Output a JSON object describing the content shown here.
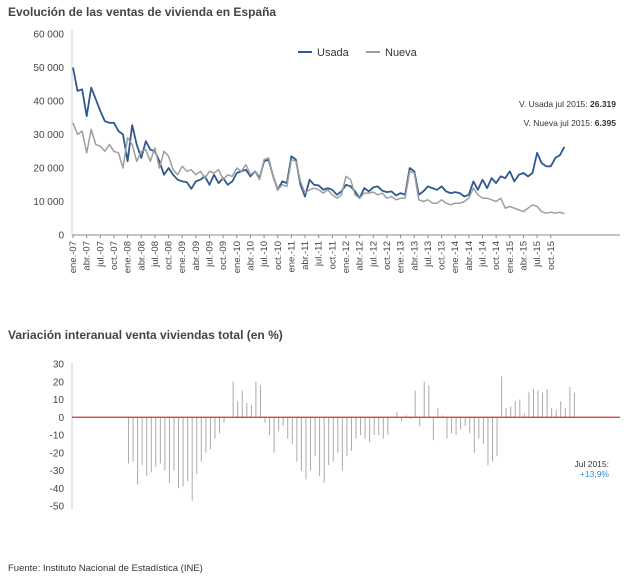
{
  "source": "Fuente: Instituto Nacional de Estadística (INE)",
  "chart_data": [
    {
      "type": "line",
      "title": "Evolución de las ventas de vivienda en España",
      "ylim": [
        0,
        60000
      ],
      "yticks": [
        "0",
        "10 000",
        "20 000",
        "30 000",
        "40 000",
        "50 000",
        "60 000"
      ],
      "x_tick_labels": [
        "ene.-07",
        "abr.-07",
        "jul.-07",
        "oct.-07",
        "ene.-08",
        "abr.-08",
        "jul.-08",
        "oct.-08",
        "ene.-09",
        "abr.-09",
        "jul.-09",
        "oct.-09",
        "ene.-10",
        "abr.-10",
        "jul.-10",
        "oct.-10",
        "ene.-11",
        "abr.-11",
        "jul.-11",
        "oct.-11",
        "ene.-12",
        "abr.-12",
        "jul.-12",
        "oct.-12",
        "ene.-13",
        "abr.-13",
        "jul.-13",
        "oct.-13",
        "ene.-14",
        "abr.-14",
        "jul.-14",
        "oct.-14",
        "ene.-15",
        "abr.-15",
        "jul.-15",
        "oct.-15"
      ],
      "legend_position": "top-center",
      "series": [
        {
          "name": "Usada",
          "color": "#2e5a8f",
          "values": [
            50000,
            43000,
            43500,
            35500,
            44000,
            40500,
            37000,
            34000,
            33500,
            33500,
            31000,
            30000,
            22000,
            32800,
            27000,
            23000,
            28000,
            25500,
            25000,
            22000,
            18000,
            20000,
            18000,
            16500,
            16000,
            15800,
            13800,
            16000,
            16500,
            17500,
            15000,
            18000,
            15500,
            17000,
            15000,
            16000,
            18500,
            19000,
            19500,
            17500,
            19000,
            17000,
            22000,
            22500,
            17500,
            13500,
            16000,
            15500,
            23500,
            22500,
            15000,
            11500,
            16500,
            15000,
            14800,
            13500,
            14000,
            13500,
            12000,
            13000,
            15000,
            14500,
            13000,
            11000,
            14000,
            13000,
            14200,
            14500,
            13200,
            12800,
            13000,
            11800,
            12500,
            12000,
            20000,
            19000,
            12000,
            13000,
            14500,
            14000,
            13500,
            14500,
            13000,
            12500,
            12800,
            12500,
            11500,
            12000,
            16000,
            13500,
            16500,
            14000,
            17000,
            15500,
            17500,
            17000,
            19000,
            16000,
            18000,
            18500,
            17500,
            18500,
            24500,
            21500,
            20500,
            20500,
            23000,
            23800,
            26319
          ]
        },
        {
          "name": "Nueva",
          "color": "#9e9e9e",
          "values": [
            33500,
            30000,
            31000,
            24500,
            31500,
            27000,
            26500,
            25000,
            27000,
            25000,
            24500,
            20000,
            29000,
            27000,
            22000,
            25000,
            25500,
            22000,
            26000,
            20000,
            25000,
            23500,
            19500,
            18000,
            20500,
            19000,
            19500,
            18000,
            19000,
            17000,
            19000,
            18500,
            19500,
            16500,
            18000,
            17500,
            20000,
            19000,
            21000,
            18000,
            19000,
            16500,
            22500,
            23000,
            17500,
            13500,
            15000,
            14500,
            22500,
            22000,
            16000,
            12500,
            13500,
            14000,
            13500,
            12500,
            13500,
            12000,
            11000,
            12000,
            17500,
            16500,
            12000,
            11000,
            12500,
            12500,
            12800,
            12000,
            12500,
            11000,
            11500,
            10500,
            11000,
            11000,
            19000,
            18500,
            10500,
            10000,
            10500,
            9500,
            9500,
            10500,
            9500,
            9000,
            9500,
            9500,
            10000,
            11000,
            14000,
            12000,
            11000,
            11000,
            10500,
            10000,
            11000,
            8000,
            8500,
            8000,
            7500,
            7000,
            8000,
            9000,
            8500,
            7000,
            6500,
            6800,
            6500,
            6800,
            6395
          ]
        }
      ],
      "annotations": [
        {
          "label": "V. Usada jul 2015:",
          "value": "26.319"
        },
        {
          "label": "V. Nueva jul 2015:",
          "value": "6.395"
        }
      ]
    },
    {
      "type": "bar",
      "title": "Variación interanual venta viviendas total (en %)",
      "ylim": [
        -50,
        30
      ],
      "yticks": [
        "-50",
        "-40",
        "-30",
        "-20",
        "-10",
        "0",
        "10",
        "20",
        "30"
      ],
      "baseline_color": "#d93030",
      "bar_color": "#aaaaaa",
      "values": [
        -26,
        -25,
        -38,
        -27,
        -33,
        -31,
        -28,
        -26,
        -30,
        -37,
        -30,
        -40,
        -39,
        -36,
        -47,
        -32,
        -25,
        -20,
        -18,
        -12,
        -9,
        -3,
        0,
        20,
        9,
        15,
        8,
        7,
        20,
        18,
        -3,
        -10,
        -20,
        -8,
        -5,
        -12,
        -15,
        -25,
        -30,
        -35,
        -30,
        -22,
        -33,
        -37,
        -27,
        -25,
        -20,
        -30,
        -22,
        -19,
        -12,
        -10,
        -12,
        -14,
        -10,
        -10,
        -12,
        -10,
        0,
        3,
        -2,
        1,
        -1,
        15,
        -5,
        20,
        18,
        -13,
        5,
        1,
        -12,
        -9,
        -10,
        -7,
        -5,
        -9,
        -20,
        -12,
        -15,
        -27,
        -25,
        -22,
        23,
        5,
        6,
        9,
        10,
        2,
        14,
        16,
        15,
        14,
        16,
        5,
        4,
        9,
        5,
        17,
        13.9
      ],
      "annotation": {
        "label": "Jul 2015:",
        "value": "+13,9%"
      }
    }
  ]
}
